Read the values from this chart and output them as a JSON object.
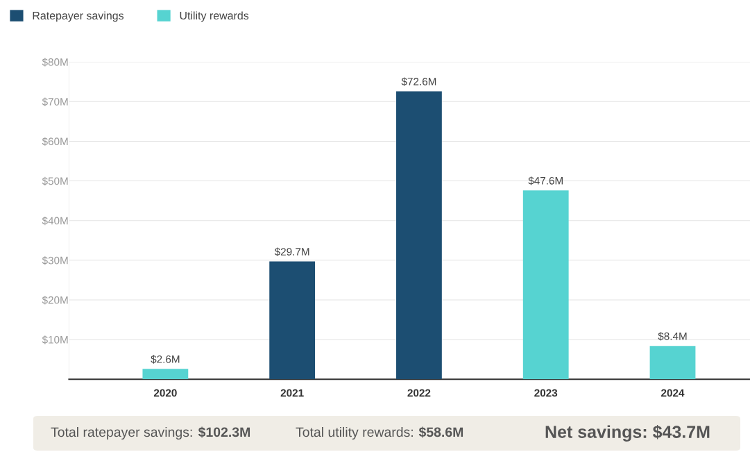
{
  "chart_data": {
    "type": "bar",
    "categories": [
      "2020",
      "2021",
      "2022",
      "2023",
      "2024"
    ],
    "series": [
      {
        "name": "Ratepayer savings",
        "color": "#1c4e72",
        "values": [
          null,
          29.7,
          72.6,
          null,
          null
        ],
        "value_labels": [
          null,
          "$29.7M",
          "$72.6M",
          null,
          null
        ]
      },
      {
        "name": "Utility rewards",
        "color": "#56d3d1",
        "values": [
          2.6,
          null,
          null,
          47.6,
          8.4
        ],
        "value_labels": [
          "$2.6M",
          null,
          null,
          "$47.6M",
          "$8.4M"
        ]
      }
    ],
    "ylim": [
      0,
      80
    ],
    "yticks": [
      {
        "value": 10,
        "label": "$10M"
      },
      {
        "value": 20,
        "label": "$20M"
      },
      {
        "value": 30,
        "label": "$30M"
      },
      {
        "value": 40,
        "label": "$40M"
      },
      {
        "value": 50,
        "label": "$50M"
      },
      {
        "value": 60,
        "label": "$60M"
      },
      {
        "value": 70,
        "label": "$70M"
      },
      {
        "value": 80,
        "label": "$80M"
      }
    ],
    "grid": "y",
    "legend": "top left",
    "annotations": [
      "Total ratepayer savings: $102.3M",
      "Total utility rewards: $58.6M",
      "Net savings: $43.7M"
    ]
  }
}
